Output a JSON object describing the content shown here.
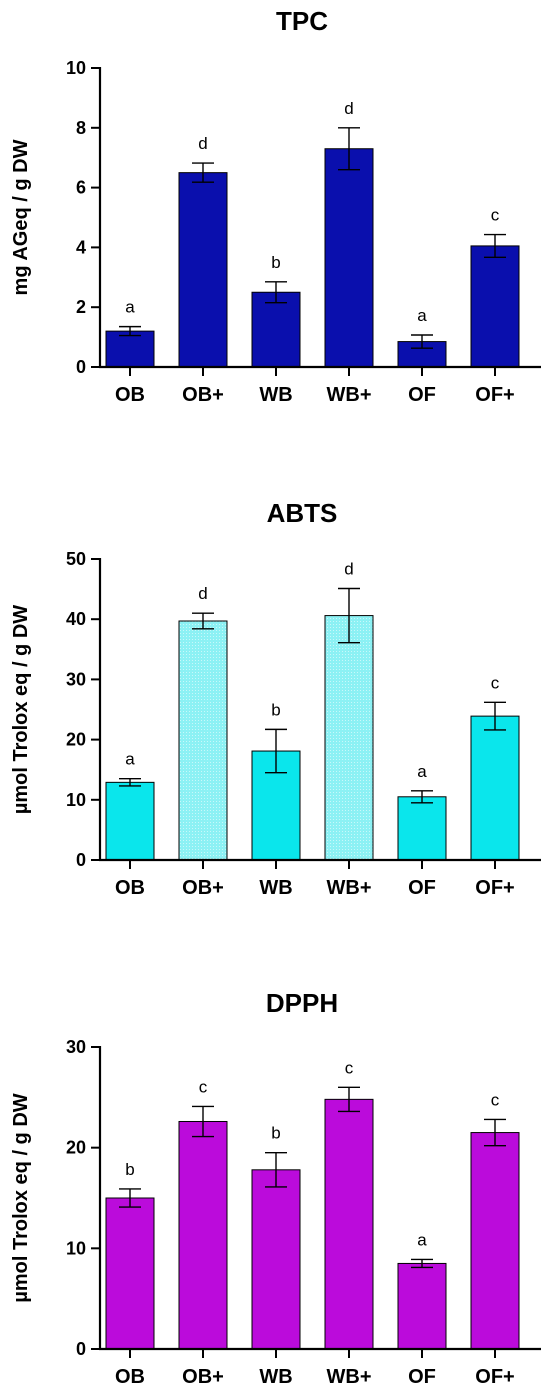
{
  "chart_data": [
    {
      "type": "bar",
      "title": "TPC",
      "ylabel": "mg AGeq / g DW",
      "xlabel": "",
      "ylim": [
        0,
        10
      ],
      "yticks": [
        0,
        2,
        4,
        6,
        8,
        10
      ],
      "categories": [
        "OB",
        "OB+",
        "WB",
        "WB+",
        "OF",
        "OF+"
      ],
      "values": [
        1.2,
        6.5,
        2.5,
        7.3,
        0.85,
        4.05
      ],
      "errors": [
        0.15,
        0.32,
        0.35,
        0.7,
        0.22,
        0.38
      ],
      "labels": [
        "a",
        "d",
        "b",
        "d",
        "a",
        "c"
      ],
      "colors": [
        "#0a0fad",
        "#0a0fad",
        "#0a0fad",
        "#0a0fad",
        "#0a0fad",
        "#0a0fad"
      ],
      "patterned": [
        false,
        false,
        false,
        false,
        false,
        false
      ],
      "grid": false
    },
    {
      "type": "bar",
      "title": "ABTS",
      "ylabel": "µmol Trolox eq / g DW",
      "xlabel": "",
      "ylim": [
        0,
        50
      ],
      "yticks": [
        0,
        10,
        20,
        30,
        40,
        50
      ],
      "categories": [
        "OB",
        "OB+",
        "WB",
        "WB+",
        "OF",
        "OF+"
      ],
      "values": [
        12.9,
        39.7,
        18.1,
        40.6,
        10.5,
        23.9
      ],
      "errors": [
        0.6,
        1.3,
        3.6,
        4.5,
        1.0,
        2.3
      ],
      "labels": [
        "a",
        "d",
        "b",
        "d",
        "a",
        "c"
      ],
      "colors": [
        "#0ae6ec",
        "#8cf1f4",
        "#0ae6ec",
        "#8cf1f4",
        "#0ae6ec",
        "#0ae6ec"
      ],
      "patterned": [
        false,
        true,
        false,
        true,
        false,
        false
      ],
      "grid": false
    },
    {
      "type": "bar",
      "title": "DPPH",
      "ylabel": "µmol Trolox eq / g DW",
      "xlabel": "",
      "ylim": [
        0,
        30
      ],
      "yticks": [
        0,
        10,
        20,
        30
      ],
      "categories": [
        "OB",
        "OB+",
        "WB",
        "WB+",
        "OF",
        "OF+"
      ],
      "values": [
        15.0,
        22.6,
        17.8,
        24.8,
        8.5,
        21.5
      ],
      "errors": [
        0.9,
        1.5,
        1.7,
        1.2,
        0.4,
        1.3
      ],
      "labels": [
        "b",
        "c",
        "b",
        "c",
        "a",
        "c"
      ],
      "colors": [
        "#bb0bdb",
        "#bb0bdb",
        "#bb0bdb",
        "#bb0bdb",
        "#bb0bdb",
        "#bb0bdb"
      ],
      "patterned": [
        false,
        false,
        false,
        false,
        false,
        false
      ],
      "grid": false
    }
  ]
}
